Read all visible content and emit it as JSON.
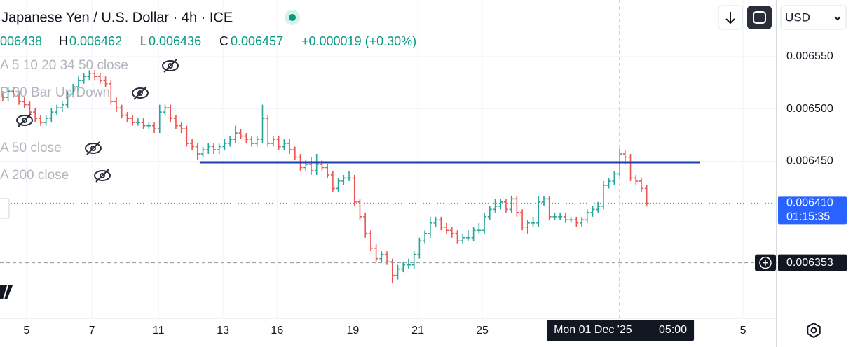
{
  "header": {
    "title": "Japanese Yen / U.S. Dollar · 4h · ICE",
    "ohlc": {
      "open": "006438",
      "h": "H",
      "high": "0.006462",
      "l": "L",
      "low": "0.006436",
      "c": "C",
      "close": "0.006457",
      "change": "+0.000019 (+0.30%)"
    },
    "indicators": [
      "A 5 10 20 34 50 close",
      "P 30 Bar Up/Down",
      "A 50 close",
      "A 200 close"
    ]
  },
  "toolbar": {
    "currency": "USD"
  },
  "chart_data": {
    "type": "ohlc",
    "up_color": "#26a69a",
    "down_color": "#ef5350",
    "grid": true,
    "xlim": [
      -0.5,
      143
    ],
    "xticks": [
      {
        "value": 4.4,
        "label": "5"
      },
      {
        "value": 16.5,
        "label": "7"
      },
      {
        "value": 28.8,
        "label": "11"
      },
      {
        "value": 40.7,
        "label": "13"
      },
      {
        "value": 50.7,
        "label": "16"
      },
      {
        "value": 64.7,
        "label": "19"
      },
      {
        "value": 76.7,
        "label": "21"
      },
      {
        "value": 88.6,
        "label": "25"
      },
      {
        "value": 136.8,
        "label": "5"
      }
    ],
    "ylim": [
      0.0063,
      0.006604
    ],
    "yticks": [
      {
        "value": 0.00655,
        "label": "0.006550"
      },
      {
        "value": 0.0065,
        "label": "0.006500"
      },
      {
        "value": 0.00645,
        "label": "0.006450"
      }
    ],
    "open": [
      0.006514,
      0.006511,
      0.006517,
      0.006514,
      0.006507,
      0.006504,
      0.006497,
      0.006491,
      0.006487,
      0.006491,
      0.006497,
      0.006501,
      0.006504,
      0.006514,
      0.006521,
      0.006527,
      0.006531,
      0.006534,
      0.006531,
      0.006527,
      0.006524,
      0.006507,
      0.006501,
      0.006494,
      0.006491,
      0.006487,
      0.006487,
      0.006484,
      0.006484,
      0.006481,
      0.006497,
      0.006501,
      0.006491,
      0.006484,
      0.006481,
      0.006467,
      0.006464,
      0.006457,
      0.006461,
      0.006464,
      0.006461,
      0.006464,
      0.006467,
      0.006471,
      0.006477,
      0.006474,
      0.006471,
      0.006467,
      0.006471,
      0.006491,
      0.006467,
      0.006471,
      0.006464,
      0.006467,
      0.006461,
      0.006454,
      0.006444,
      0.006447,
      0.006441,
      0.006447,
      0.006444,
      0.006437,
      0.006424,
      0.006431,
      0.006434,
      0.006434,
      0.006411,
      0.006397,
      0.006381,
      0.006367,
      0.006357,
      0.006361,
      0.006354,
      0.006341,
      0.006347,
      0.006351,
      0.006351,
      0.006361,
      0.006374,
      0.006381,
      0.006391,
      0.006394,
      0.006387,
      0.006384,
      0.006381,
      0.006374,
      0.006377,
      0.006377,
      0.006384,
      0.006384,
      0.006397,
      0.006404,
      0.006407,
      0.006411,
      0.006404,
      0.006414,
      0.006401,
      0.006387,
      0.006391,
      0.006391,
      0.006411,
      0.006414,
      0.006397,
      0.006397,
      0.006397,
      0.006394,
      0.006394,
      0.006391,
      0.006394,
      0.006401,
      0.006404,
      0.006407,
      0.006427,
      0.006431,
      0.006438,
      0.006457,
      0.006454,
      0.006434,
      0.006431,
      0.006424
    ],
    "high": [
      0.006517,
      0.006521,
      0.006521,
      0.006517,
      0.006511,
      0.006507,
      0.006501,
      0.006494,
      0.006494,
      0.006501,
      0.006504,
      0.006507,
      0.006517,
      0.006524,
      0.006531,
      0.006534,
      0.006537,
      0.006537,
      0.006534,
      0.006531,
      0.006527,
      0.006511,
      0.006504,
      0.006497,
      0.006494,
      0.006491,
      0.006491,
      0.006487,
      0.006487,
      0.006504,
      0.006504,
      0.006504,
      0.006494,
      0.006487,
      0.006484,
      0.006471,
      0.006467,
      0.006464,
      0.006467,
      0.006467,
      0.006467,
      0.006471,
      0.006474,
      0.006484,
      0.006481,
      0.006477,
      0.006474,
      0.006474,
      0.006504,
      0.006494,
      0.006474,
      0.006474,
      0.006471,
      0.006471,
      0.006464,
      0.006457,
      0.006451,
      0.006454,
      0.006457,
      0.006451,
      0.006447,
      0.006441,
      0.006434,
      0.006437,
      0.006441,
      0.006437,
      0.006414,
      0.006401,
      0.006384,
      0.006371,
      0.006364,
      0.006364,
      0.006357,
      0.006351,
      0.006354,
      0.006357,
      0.006364,
      0.006377,
      0.006384,
      0.006397,
      0.006397,
      0.006397,
      0.006391,
      0.006387,
      0.006384,
      0.006381,
      0.006384,
      0.006387,
      0.006391,
      0.006401,
      0.006407,
      0.006414,
      0.006414,
      0.006414,
      0.006417,
      0.006417,
      0.006404,
      0.006394,
      0.006397,
      0.006417,
      0.006417,
      0.006417,
      0.006401,
      0.006401,
      0.006401,
      0.006397,
      0.006397,
      0.006397,
      0.006404,
      0.006407,
      0.006411,
      0.006431,
      0.006434,
      0.006441,
      0.006462,
      0.006461,
      0.006457,
      0.006437,
      0.006434,
      0.006427
    ],
    "low": [
      0.006507,
      0.006507,
      0.006511,
      0.006504,
      0.006501,
      0.006494,
      0.006487,
      0.006484,
      0.006484,
      0.006487,
      0.006494,
      0.006497,
      0.006501,
      0.006511,
      0.006517,
      0.006524,
      0.006527,
      0.006527,
      0.006524,
      0.006521,
      0.006504,
      0.006497,
      0.006491,
      0.006487,
      0.006484,
      0.006484,
      0.006481,
      0.006481,
      0.006477,
      0.006477,
      0.006494,
      0.006487,
      0.006481,
      0.006477,
      0.006464,
      0.006461,
      0.006451,
      0.006454,
      0.006457,
      0.006457,
      0.006457,
      0.006461,
      0.006464,
      0.006467,
      0.006471,
      0.006467,
      0.006464,
      0.006464,
      0.006467,
      0.006464,
      0.006464,
      0.006461,
      0.006461,
      0.006457,
      0.006451,
      0.006441,
      0.006441,
      0.006437,
      0.006437,
      0.006441,
      0.006434,
      0.006421,
      0.006421,
      0.006427,
      0.006431,
      0.006407,
      0.006394,
      0.006377,
      0.006364,
      0.006354,
      0.006354,
      0.006351,
      0.006334,
      0.006337,
      0.006344,
      0.006347,
      0.006347,
      0.006357,
      0.006371,
      0.006377,
      0.006387,
      0.006384,
      0.006381,
      0.006377,
      0.006371,
      0.006371,
      0.006374,
      0.006374,
      0.006381,
      0.006381,
      0.006394,
      0.006401,
      0.006404,
      0.006401,
      0.006401,
      0.006397,
      0.006384,
      0.006381,
      0.006387,
      0.006387,
      0.006407,
      0.006394,
      0.006394,
      0.006394,
      0.006391,
      0.006391,
      0.006387,
      0.006387,
      0.006391,
      0.006397,
      0.006401,
      0.006404,
      0.006424,
      0.006427,
      0.006436,
      0.006447,
      0.006431,
      0.006427,
      0.006421,
      0.006407
    ],
    "close": [
      0.006511,
      0.006517,
      0.006514,
      0.006507,
      0.006504,
      0.006497,
      0.006491,
      0.006487,
      0.006491,
      0.006497,
      0.006501,
      0.006504,
      0.006514,
      0.006521,
      0.006527,
      0.006531,
      0.006534,
      0.006531,
      0.006527,
      0.006524,
      0.006507,
      0.006501,
      0.006494,
      0.006491,
      0.006487,
      0.006487,
      0.006484,
      0.006484,
      0.006481,
      0.006497,
      0.006501,
      0.006491,
      0.006484,
      0.006481,
      0.006467,
      0.006464,
      0.006457,
      0.006461,
      0.006464,
      0.006461,
      0.006464,
      0.006467,
      0.006471,
      0.006477,
      0.006474,
      0.006471,
      0.006467,
      0.006471,
      0.006491,
      0.006467,
      0.006471,
      0.006464,
      0.006467,
      0.006461,
      0.006454,
      0.006444,
      0.006447,
      0.006441,
      0.006447,
      0.006444,
      0.006437,
      0.006424,
      0.006431,
      0.006434,
      0.006434,
      0.006411,
      0.006397,
      0.006381,
      0.006367,
      0.006357,
      0.006361,
      0.006354,
      0.006341,
      0.006347,
      0.006351,
      0.006351,
      0.006361,
      0.006374,
      0.006381,
      0.006391,
      0.006394,
      0.006387,
      0.006384,
      0.006381,
      0.006374,
      0.006377,
      0.006377,
      0.006384,
      0.006384,
      0.006397,
      0.006404,
      0.006407,
      0.006411,
      0.006404,
      0.006414,
      0.006401,
      0.006387,
      0.006391,
      0.006391,
      0.006411,
      0.006414,
      0.006397,
      0.006397,
      0.006397,
      0.006394,
      0.006394,
      0.006391,
      0.006394,
      0.006401,
      0.006404,
      0.006407,
      0.006427,
      0.006431,
      0.006438,
      0.006457,
      0.006454,
      0.006434,
      0.006431,
      0.006424,
      0.00641
    ],
    "level": {
      "value": 0.006449,
      "x": [
        36.4,
        128.8
      ],
      "color": "#1e40af"
    },
    "last_price": {
      "value": 0.00641,
      "label": "0.006410",
      "countdown": "01:15:35",
      "color": "#2962ff"
    },
    "crosshair": {
      "x": 114,
      "y": 0.006353,
      "x_label": "Mon 01 Dec '25",
      "time": "05:00"
    }
  }
}
